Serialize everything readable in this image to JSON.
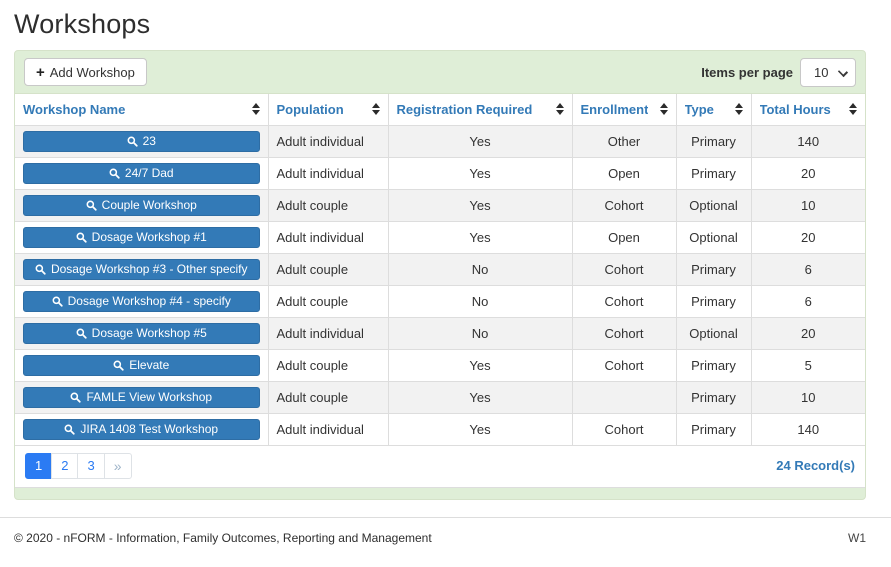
{
  "page": {
    "title": "Workshops"
  },
  "toolbar": {
    "add_button_label": "Add Workshop",
    "add_button_icon": "plus-icon",
    "items_per_page_label": "Items per page",
    "items_per_page_value": "10"
  },
  "table": {
    "columns": [
      {
        "label": "Workshop Name",
        "sortable": true
      },
      {
        "label": "Population",
        "sortable": true
      },
      {
        "label": "Registration Required",
        "sortable": true
      },
      {
        "label": "Enrollment",
        "sortable": true
      },
      {
        "label": "Type",
        "sortable": true
      },
      {
        "label": "Total Hours",
        "sortable": true
      }
    ],
    "rows": [
      {
        "name": "23",
        "population": "Adult individual",
        "registration_required": "Yes",
        "enrollment": "Other",
        "type": "Primary",
        "total_hours": "140"
      },
      {
        "name": "24/7 Dad",
        "population": "Adult individual",
        "registration_required": "Yes",
        "enrollment": "Open",
        "type": "Primary",
        "total_hours": "20"
      },
      {
        "name": "Couple Workshop",
        "population": "Adult couple",
        "registration_required": "Yes",
        "enrollment": "Cohort",
        "type": "Optional",
        "total_hours": "10"
      },
      {
        "name": "Dosage Workshop #1",
        "population": "Adult individual",
        "registration_required": "Yes",
        "enrollment": "Open",
        "type": "Optional",
        "total_hours": "20"
      },
      {
        "name": "Dosage Workshop #3 - Other specify",
        "population": "Adult couple",
        "registration_required": "No",
        "enrollment": "Cohort",
        "type": "Primary",
        "total_hours": "6"
      },
      {
        "name": "Dosage Workshop #4 - specify",
        "population": "Adult couple",
        "registration_required": "No",
        "enrollment": "Cohort",
        "type": "Primary",
        "total_hours": "6"
      },
      {
        "name": "Dosage Workshop #5",
        "population": "Adult individual",
        "registration_required": "No",
        "enrollment": "Cohort",
        "type": "Optional",
        "total_hours": "20"
      },
      {
        "name": "Elevate",
        "population": "Adult couple",
        "registration_required": "Yes",
        "enrollment": "Cohort",
        "type": "Primary",
        "total_hours": "5"
      },
      {
        "name": "FAMLE View Workshop",
        "population": "Adult couple",
        "registration_required": "Yes",
        "enrollment": "",
        "type": "Primary",
        "total_hours": "10"
      },
      {
        "name": "JIRA 1408 Test Workshop",
        "population": "Adult individual",
        "registration_required": "Yes",
        "enrollment": "Cohort",
        "type": "Primary",
        "total_hours": "140"
      }
    ],
    "row_button_icon": "magnifier-icon"
  },
  "pagination": {
    "pages": [
      "1",
      "2",
      "3"
    ],
    "active_page": "1",
    "next_label": "»",
    "records_text": "24 Record(s)"
  },
  "footer": {
    "copyright": "© 2020 - nFORM - Information, Family Outcomes, Reporting and Management",
    "version": "W1"
  },
  "colors": {
    "accent_blue": "#337ab7",
    "pagination_active_blue": "#2b7bf3",
    "toolbar_green": "#dfeed7",
    "stripe_grey": "#f2f2f2",
    "border_grey": "#dddddd"
  }
}
